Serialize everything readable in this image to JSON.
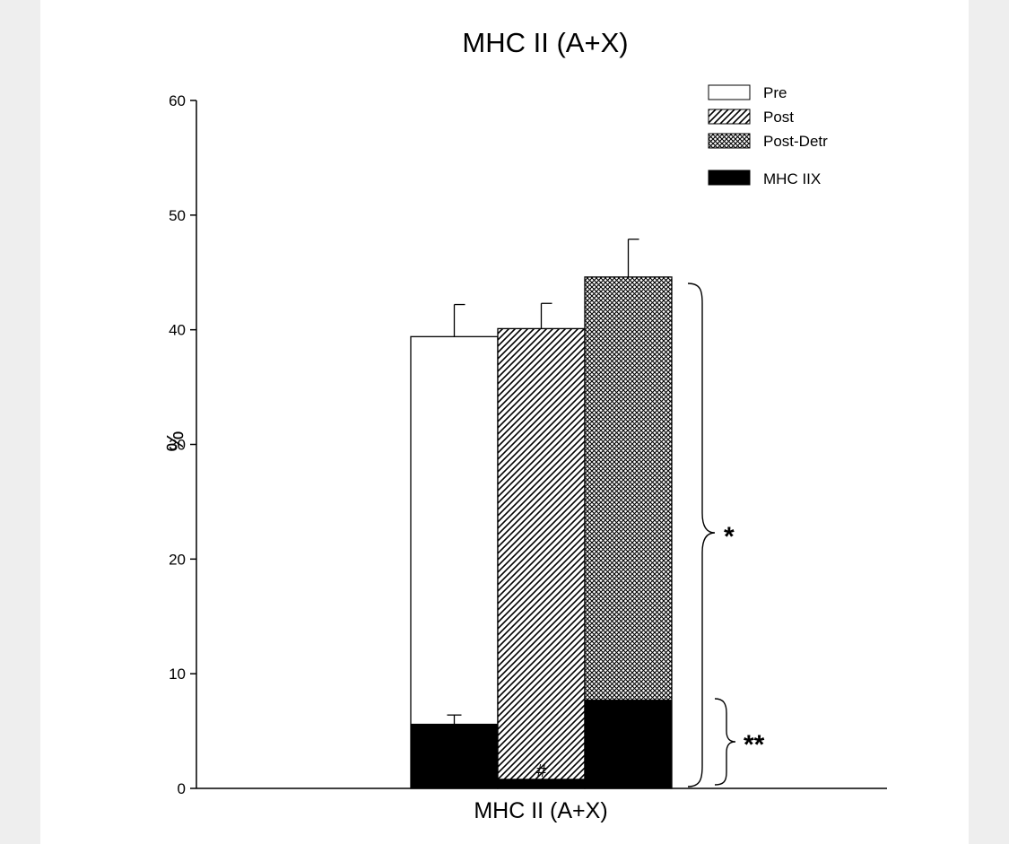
{
  "chart_data": {
    "type": "bar",
    "title": "MHC II (A+X)",
    "xlabel": "MHC II (A+X)",
    "ylabel": "%",
    "ylim": [
      0,
      60
    ],
    "yticks": [
      0,
      10,
      20,
      30,
      40,
      50,
      60
    ],
    "categories": [
      "MHC II (A+X)"
    ],
    "series": [
      {
        "name": "Pre",
        "pattern": "open",
        "total": 39.4,
        "total_err": 2.8,
        "mhc_iix": 5.6,
        "mhc_iix_err": 0.8
      },
      {
        "name": "Post",
        "pattern": "hatched",
        "total": 40.1,
        "total_err": 2.2,
        "mhc_iix": 0.8,
        "mhc_iix_err": 0.0,
        "iix_annotation": "#"
      },
      {
        "name": "Post-Detr",
        "pattern": "crosshatched",
        "total": 44.6,
        "total_err": 3.3,
        "mhc_iix": 7.7,
        "mhc_iix_err": 0.0
      }
    ],
    "overlay_series": {
      "name": "MHC IIX",
      "color": "#000000"
    },
    "legend_placement": "top-right",
    "grid": false,
    "annotations": [
      {
        "text": "*",
        "refers_to": "total"
      },
      {
        "text": "**",
        "refers_to": "mhc_iix"
      }
    ]
  }
}
